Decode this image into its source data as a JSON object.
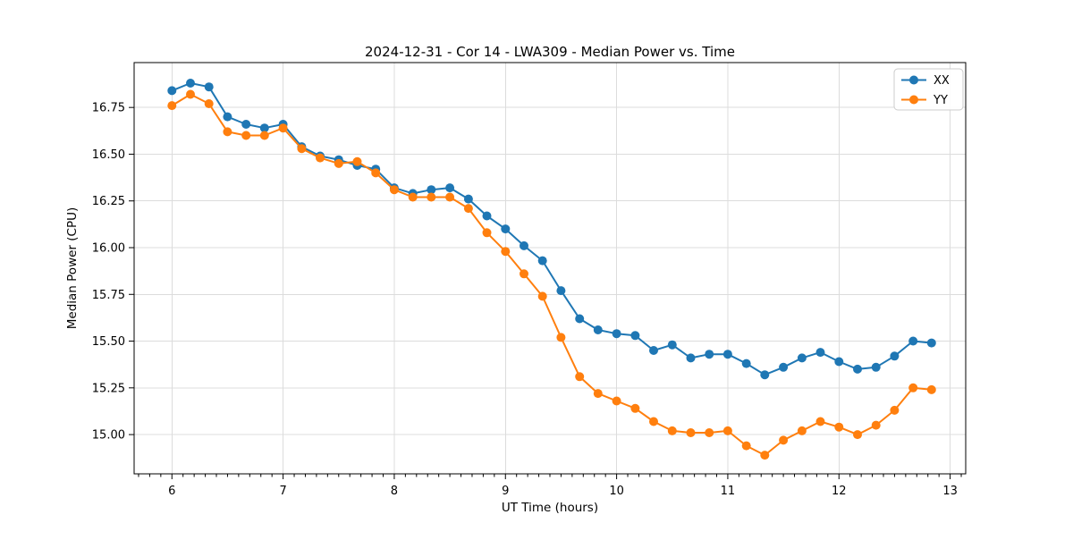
{
  "chart_data": {
    "type": "line",
    "title": "2024-12-31 - Cor 14 - LWA309 - Median Power vs. Time",
    "xlabel": "UT Time (hours)",
    "ylabel": "Median Power (CPU)",
    "xlim": [
      5.66,
      13.14
    ],
    "ylim": [
      14.79,
      16.99
    ],
    "xticks": [
      6,
      7,
      8,
      9,
      10,
      11,
      12,
      13
    ],
    "x_minor_tick_step": 0.1,
    "yticks": [
      15.0,
      15.25,
      15.5,
      15.75,
      16.0,
      16.25,
      16.5,
      16.75
    ],
    "ytick_labels": [
      "15.00",
      "15.25",
      "15.50",
      "15.75",
      "16.00",
      "16.25",
      "16.50",
      "16.75"
    ],
    "grid": true,
    "grid_color": "#dcdcdc",
    "legend": {
      "position": "upper right",
      "labels": [
        "XX",
        "YY"
      ]
    },
    "x": [
      6.0,
      6.167,
      6.333,
      6.5,
      6.667,
      6.833,
      7.0,
      7.167,
      7.333,
      7.5,
      7.667,
      7.833,
      8.0,
      8.167,
      8.333,
      8.5,
      8.667,
      8.833,
      9.0,
      9.167,
      9.333,
      9.5,
      9.667,
      9.833,
      10.0,
      10.167,
      10.333,
      10.5,
      10.667,
      10.833,
      11.0,
      11.167,
      11.333,
      11.5,
      11.667,
      11.833,
      12.0,
      12.167,
      12.333,
      12.5,
      12.667,
      12.833
    ],
    "series": [
      {
        "name": "XX",
        "color": "#1f77b4",
        "marker": "circle",
        "values": [
          16.84,
          16.88,
          16.86,
          16.7,
          16.66,
          16.64,
          16.66,
          16.54,
          16.49,
          16.47,
          16.44,
          16.42,
          16.32,
          16.29,
          16.31,
          16.32,
          16.26,
          16.17,
          16.1,
          16.01,
          15.93,
          15.77,
          15.62,
          15.56,
          15.54,
          15.53,
          15.45,
          15.48,
          15.41,
          15.43,
          15.43,
          15.38,
          15.32,
          15.36,
          15.41,
          15.44,
          15.39,
          15.35,
          15.36,
          15.42,
          15.5,
          15.49
        ]
      },
      {
        "name": "YY",
        "color": "#ff7f0e",
        "marker": "circle",
        "values": [
          16.76,
          16.82,
          16.77,
          16.62,
          16.6,
          16.6,
          16.64,
          16.53,
          16.48,
          16.45,
          16.46,
          16.4,
          16.31,
          16.27,
          16.27,
          16.27,
          16.21,
          16.08,
          15.98,
          15.86,
          15.74,
          15.52,
          15.31,
          15.22,
          15.18,
          15.14,
          15.07,
          15.02,
          15.01,
          15.01,
          15.02,
          14.94,
          14.89,
          14.97,
          15.02,
          15.07,
          15.04,
          15.0,
          15.05,
          15.13,
          15.25,
          15.24
        ]
      }
    ]
  }
}
